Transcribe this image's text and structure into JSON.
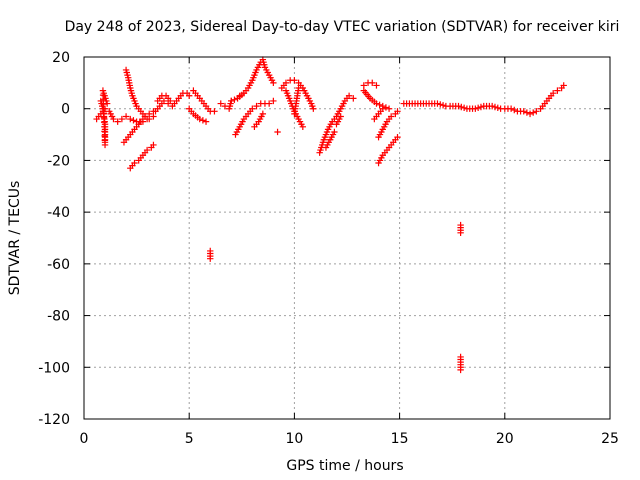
{
  "chart_data": {
    "type": "scatter",
    "title": "Day 248 of 2023, Sidereal Day-to-day VTEC variation (SDTVAR) for receiver kiri",
    "xlabel": "GPS time / hours",
    "ylabel": "SDTVAR / TECUs",
    "xlim": [
      0,
      25
    ],
    "ylim": [
      -120,
      20
    ],
    "xticks": [
      0,
      5,
      10,
      15,
      20,
      25
    ],
    "yticks": [
      -120,
      -100,
      -80,
      -60,
      -40,
      -20,
      0,
      20
    ],
    "xtick_labels": [
      "0",
      "5",
      "10",
      "15",
      "20",
      "25"
    ],
    "ytick_labels": [
      "-120",
      "-100",
      "-80",
      "-60",
      "-40",
      "-20",
      "0",
      "20"
    ],
    "grid": true,
    "marker": "+",
    "color": "#ff0000",
    "series": [
      {
        "name": "SDTVAR",
        "segments": [
          [
            [
              0.6,
              -4
            ],
            [
              0.8,
              -2
            ],
            [
              1.0,
              0
            ],
            [
              1.2,
              -1
            ],
            [
              1.4,
              -4
            ],
            [
              1.6,
              -5
            ],
            [
              1.8,
              -4
            ],
            [
              2.0,
              -3
            ],
            [
              2.2,
              -4
            ],
            [
              2.5,
              -5
            ],
            [
              2.8,
              -5
            ],
            [
              3.0,
              -4
            ]
          ],
          [
            [
              0.8,
              3
            ],
            [
              0.9,
              0
            ],
            [
              1.0,
              -6
            ],
            [
              1.0,
              -14
            ],
            [
              0.9,
              7
            ],
            [
              1.1,
              2
            ]
          ],
          [
            [
              2.0,
              15
            ],
            [
              2.1,
              12
            ],
            [
              2.2,
              8
            ],
            [
              2.3,
              5
            ],
            [
              2.4,
              3
            ],
            [
              2.5,
              1
            ],
            [
              2.7,
              -1
            ],
            [
              2.9,
              -3
            ],
            [
              3.1,
              -4
            ],
            [
              3.3,
              -3
            ]
          ],
          [
            [
              1.9,
              -13
            ],
            [
              2.1,
              -11
            ],
            [
              2.3,
              -9
            ],
            [
              2.5,
              -7
            ],
            [
              2.7,
              -5
            ],
            [
              2.9,
              -3
            ],
            [
              3.1,
              -2
            ],
            [
              3.3,
              -1
            ]
          ],
          [
            [
              2.2,
              -23
            ],
            [
              2.4,
              -21
            ],
            [
              2.6,
              -20
            ],
            [
              2.8,
              -18
            ],
            [
              3.0,
              -16
            ],
            [
              3.2,
              -15
            ],
            [
              3.3,
              -14
            ]
          ],
          [
            [
              3.5,
              3
            ],
            [
              3.7,
              5
            ],
            [
              3.9,
              5
            ],
            [
              4.1,
              3
            ],
            [
              4.3,
              2
            ],
            [
              4.5,
              4
            ],
            [
              4.7,
              6
            ],
            [
              4.9,
              6
            ],
            [
              5.0,
              5
            ]
          ],
          [
            [
              3.4,
              -1
            ],
            [
              3.6,
              1
            ],
            [
              3.8,
              3
            ],
            [
              4.0,
              2
            ],
            [
              4.2,
              1
            ]
          ],
          [
            [
              5.2,
              7
            ],
            [
              5.4,
              5
            ],
            [
              5.6,
              3
            ],
            [
              5.8,
              1
            ],
            [
              6.0,
              -1
            ],
            [
              6.2,
              -1
            ]
          ],
          [
            [
              5.0,
              0
            ],
            [
              5.2,
              -2
            ],
            [
              5.5,
              -4
            ],
            [
              5.8,
              -5
            ]
          ],
          [
            [
              6.5,
              2
            ],
            [
              6.7,
              1
            ],
            [
              6.9,
              0
            ],
            [
              7.0,
              3
            ]
          ],
          [
            [
              7.2,
              -10
            ],
            [
              7.4,
              -7
            ],
            [
              7.6,
              -4
            ],
            [
              7.8,
              -2
            ],
            [
              8.0,
              0
            ],
            [
              8.2,
              1
            ],
            [
              8.4,
              2
            ],
            [
              8.6,
              2
            ],
            [
              8.8,
              2
            ],
            [
              9.0,
              3
            ]
          ],
          [
            [
              7.4,
              5
            ],
            [
              7.6,
              6
            ],
            [
              7.8,
              8
            ],
            [
              8.0,
              11
            ],
            [
              8.2,
              15
            ],
            [
              8.4,
              18
            ],
            [
              8.5,
              19
            ],
            [
              8.6,
              16
            ],
            [
              8.8,
              13
            ],
            [
              9.0,
              10
            ]
          ],
          [
            [
              7.0,
              3
            ],
            [
              7.3,
              4
            ],
            [
              7.6,
              6
            ]
          ],
          [
            [
              8.1,
              -7
            ],
            [
              8.3,
              -5
            ],
            [
              8.5,
              -2
            ]
          ],
          [
            [
              9.2,
              -9
            ]
          ],
          [
            [
              9.4,
              8
            ],
            [
              9.6,
              10
            ],
            [
              9.8,
              11
            ],
            [
              10.0,
              11
            ],
            [
              10.2,
              10
            ],
            [
              10.4,
              8
            ],
            [
              10.6,
              5
            ],
            [
              10.8,
              2
            ],
            [
              10.9,
              0
            ]
          ],
          [
            [
              9.6,
              7
            ],
            [
              9.8,
              3
            ],
            [
              10.0,
              -1
            ],
            [
              10.2,
              -4
            ],
            [
              10.4,
              -7
            ]
          ],
          [
            [
              10.0,
              -2
            ],
            [
              10.1,
              3
            ],
            [
              10.2,
              8
            ]
          ],
          [
            [
              11.2,
              -17
            ],
            [
              11.4,
              -12
            ],
            [
              11.6,
              -8
            ],
            [
              11.8,
              -5
            ],
            [
              12.0,
              -3
            ],
            [
              12.2,
              0
            ],
            [
              12.4,
              3
            ],
            [
              12.6,
              5
            ],
            [
              12.8,
              4
            ]
          ],
          [
            [
              11.5,
              -15
            ],
            [
              11.7,
              -12
            ],
            [
              11.9,
              -9
            ]
          ],
          [
            [
              12.0,
              -6
            ],
            [
              12.2,
              -3
            ]
          ],
          [
            [
              13.3,
              9
            ],
            [
              13.5,
              10
            ],
            [
              13.7,
              10
            ],
            [
              13.9,
              9
            ]
          ],
          [
            [
              13.3,
              7
            ],
            [
              13.6,
              4
            ],
            [
              13.9,
              2
            ],
            [
              14.2,
              1
            ],
            [
              14.5,
              0
            ]
          ],
          [
            [
              14.0,
              -21
            ],
            [
              14.2,
              -18
            ],
            [
              14.4,
              -16
            ],
            [
              14.6,
              -14
            ],
            [
              14.8,
              -12
            ],
            [
              14.9,
              -11
            ]
          ],
          [
            [
              14.0,
              -11
            ],
            [
              14.2,
              -8
            ],
            [
              14.4,
              -5
            ],
            [
              14.6,
              -3
            ],
            [
              14.8,
              -2
            ],
            [
              14.9,
              -1
            ]
          ],
          [
            [
              13.8,
              -4
            ],
            [
              14.0,
              -2
            ],
            [
              14.2,
              0
            ]
          ],
          [
            [
              15.2,
              2
            ],
            [
              15.6,
              2
            ],
            [
              16.0,
              2
            ],
            [
              16.4,
              2
            ],
            [
              16.8,
              2
            ],
            [
              17.2,
              1
            ]
          ],
          [
            [
              17.4,
              1
            ],
            [
              17.8,
              1
            ],
            [
              18.2,
              0
            ],
            [
              18.6,
              0
            ],
            [
              19.0,
              1
            ],
            [
              19.4,
              1
            ],
            [
              19.8,
              0
            ]
          ],
          [
            [
              20.0,
              0
            ],
            [
              20.3,
              0
            ],
            [
              20.6,
              -1
            ],
            [
              20.9,
              -1
            ],
            [
              21.2,
              -2
            ],
            [
              21.5,
              -1
            ]
          ],
          [
            [
              21.7,
              0
            ],
            [
              21.9,
              2
            ],
            [
              22.1,
              4
            ],
            [
              22.3,
              6
            ],
            [
              22.5,
              7
            ],
            [
              22.7,
              8
            ],
            [
              22.8,
              9
            ]
          ],
          [
            [
              6.0,
              -55
            ],
            [
              6.0,
              -56
            ],
            [
              6.0,
              -57
            ],
            [
              6.0,
              -58
            ]
          ],
          [
            [
              17.9,
              -45
            ],
            [
              17.9,
              -46
            ],
            [
              17.9,
              -47
            ],
            [
              17.9,
              -48
            ]
          ],
          [
            [
              17.9,
              -96
            ],
            [
              17.9,
              -97
            ],
            [
              17.9,
              -98
            ],
            [
              17.9,
              -99
            ],
            [
              17.9,
              -100
            ],
            [
              17.9,
              -101
            ]
          ]
        ]
      }
    ]
  }
}
